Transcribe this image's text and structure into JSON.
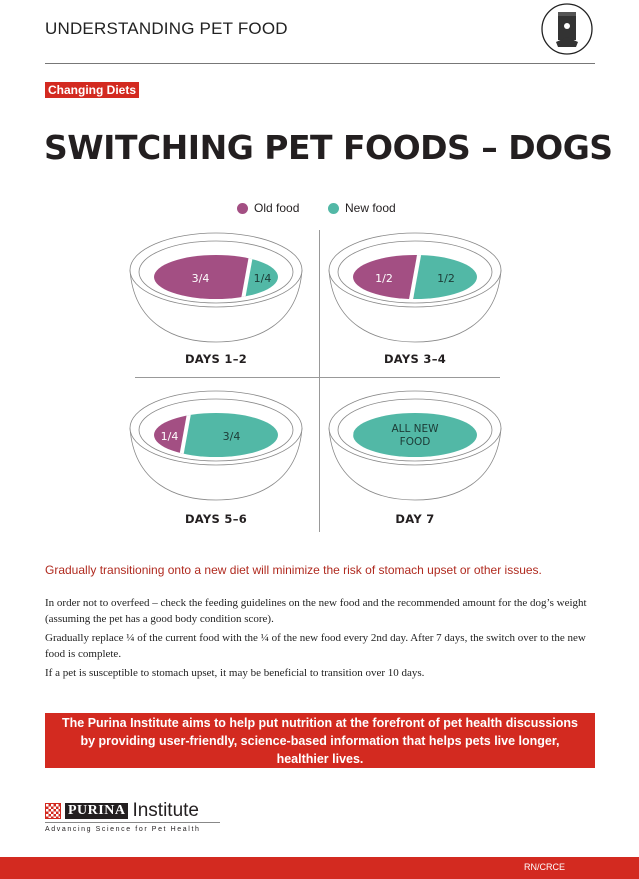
{
  "header": {
    "title": "UNDERSTANDING PET FOOD",
    "icon": "pet-food-bag-icon"
  },
  "tag": "Changing Diets",
  "title": "SWITCHING PET FOODS – DOGS",
  "legend": [
    {
      "label": "Old food",
      "color": "#a34f83"
    },
    {
      "label": "New food",
      "color": "#52b8a6"
    }
  ],
  "bowls": [
    {
      "label": "DAYS 1–2",
      "old": 0.75,
      "new": 0.25,
      "old_text": "3/4",
      "new_text": "1/4"
    },
    {
      "label": "DAYS 3–4",
      "old": 0.5,
      "new": 0.5,
      "old_text": "1/2",
      "new_text": "1/2"
    },
    {
      "label": "DAYS 5–6",
      "old": 0.25,
      "new": 0.75,
      "old_text": "1/4",
      "new_text": "3/4"
    },
    {
      "label": "DAY 7",
      "old": 0,
      "new": 1,
      "old_text": "",
      "new_text": "ALL NEW FOOD"
    }
  ],
  "lead": "Gradually transitioning onto a new diet will minimize the risk of stomach upset or other issues.",
  "paragraphs": [
    "In order not to overfeed – check the feeding guidelines on the new food and the recommended amount for the dog’s weight (assuming the pet has a good body condition score).",
    "Gradually replace ¼ of the current food with the ¼ of the new food every 2nd day. After 7 days, the switch over to the new food is complete.",
    "If a pet is susceptible to stomach upset, it may be beneficial to transition over 10 days."
  ],
  "banner": "The Purina Institute aims to help put nutrition at the forefront of pet health discussions by providing user-friendly, science-based information that helps pets live longer, healthier lives.",
  "logo": {
    "brand": "PURINA",
    "name": "Institute",
    "tagline": "Advancing Science for Pet Health"
  },
  "footer": {
    "code": "RN/CRCE"
  },
  "colors": {
    "accent": "#d32a20",
    "old": "#a34f83",
    "new": "#52b8a6"
  }
}
